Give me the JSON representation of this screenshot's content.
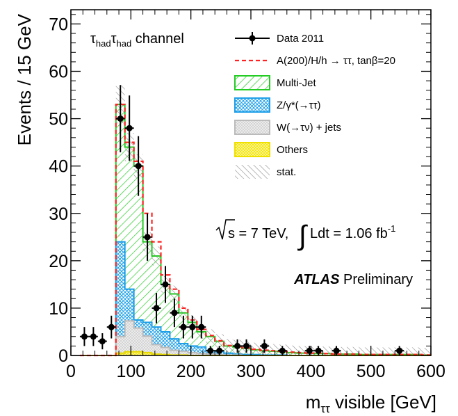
{
  "chart_data": {
    "type": "bar",
    "channel_label": {
      "prefix_a": "τ",
      "sub_a": "had",
      "prefix_b": "τ",
      "sub_b": "had",
      "rest": " channel"
    },
    "xlabel": {
      "main": "m",
      "sub": "ττ",
      "rest": " visible [GeV]"
    },
    "ylabel": "Events / 15 GeV",
    "xlim": [
      0,
      600
    ],
    "ylim": [
      0,
      73
    ],
    "x_ticks": [
      "0",
      "100",
      "200",
      "300",
      "400",
      "500",
      "600"
    ],
    "y_ticks": [
      "0",
      "10",
      "20",
      "30",
      "40",
      "50",
      "60",
      "70"
    ],
    "bins": [
      15,
      30,
      45,
      60,
      75,
      90,
      105,
      120,
      135,
      150,
      165,
      180,
      195,
      210,
      225,
      240,
      255,
      270,
      285,
      300,
      315,
      330,
      345,
      360,
      375,
      390,
      405,
      420,
      435,
      450,
      465,
      480,
      495,
      510,
      525,
      540,
      555,
      570,
      585,
      600
    ],
    "stack": {
      "others": [
        0,
        0,
        0,
        0,
        0.5,
        0.8,
        0.8,
        0.6,
        0.3,
        0.2,
        0.1,
        0.1,
        0,
        0,
        0,
        0,
        0,
        0,
        0,
        0,
        0,
        0,
        0,
        0,
        0,
        0,
        0,
        0,
        0,
        0,
        0,
        0,
        0,
        0,
        0,
        0,
        0,
        0,
        0
      ],
      "wjets": [
        0,
        0,
        0,
        0,
        3.5,
        6.5,
        5.0,
        3.5,
        2.0,
        1.5,
        1.0,
        0.8,
        0.6,
        0.4,
        0.3,
        0.2,
        0.1,
        0.1,
        0,
        0,
        0,
        0,
        0,
        0,
        0,
        0,
        0,
        0,
        0,
        0,
        0,
        0,
        0,
        0,
        0,
        0,
        0,
        0,
        0
      ],
      "ztautau": [
        0,
        0,
        0,
        0,
        24,
        14,
        7.5,
        7,
        6,
        5,
        3.5,
        2.5,
        2,
        1.8,
        1,
        0.8,
        0.5,
        0.3,
        0.2,
        0.2,
        0.1,
        0.1,
        0.1,
        0,
        0,
        0,
        0,
        0,
        0,
        0,
        0,
        0,
        0,
        0,
        0,
        0,
        0,
        0,
        0
      ],
      "multijet_total": [
        0,
        0,
        0,
        0,
        53,
        44,
        40,
        24,
        21,
        15,
        13,
        9,
        7,
        5,
        4,
        3,
        2,
        1.8,
        1.5,
        1.2,
        1.0,
        0.9,
        0.8,
        0.6,
        0.5,
        0.5,
        0.4,
        0.4,
        0.3,
        0.3,
        0.3,
        0.2,
        0.2,
        0.2,
        0.2,
        0.2,
        0.2,
        0.2,
        0.1
      ]
    },
    "signal_total": [
      0,
      0,
      0,
      0,
      53,
      45,
      41,
      30,
      24,
      17,
      14,
      10,
      7.5,
      5.5,
      4.2,
      3.1,
      2.1,
      1.9,
      1.6,
      1.3,
      1.1,
      1.0,
      0.9,
      0.7,
      0.6,
      0.5,
      0.5,
      0.4,
      0.3,
      0.3,
      0.3,
      0.2,
      0.2,
      0.2,
      0.2,
      0.2,
      0.2,
      0.2,
      0.1
    ],
    "stat_band": [
      0,
      0,
      0,
      0,
      8,
      6,
      5,
      4,
      4,
      3.5,
      3.5,
      3,
      3,
      3,
      3,
      3,
      3,
      3,
      3,
      3,
      3,
      3,
      3,
      3,
      3,
      3,
      3,
      3,
      3,
      3,
      3,
      3,
      3,
      3,
      3,
      3,
      3,
      3,
      3
    ],
    "data_points": [
      {
        "x": 22.5,
        "y": 4,
        "err": 2.0
      },
      {
        "x": 37.5,
        "y": 4,
        "err": 2.0
      },
      {
        "x": 52.5,
        "y": 3,
        "err": 1.7
      },
      {
        "x": 67.5,
        "y": 6,
        "err": 2.4
      },
      {
        "x": 82.5,
        "y": 50,
        "err": 7.1
      },
      {
        "x": 97.5,
        "y": 48,
        "err": 6.9
      },
      {
        "x": 112.5,
        "y": 40,
        "err": 6.3
      },
      {
        "x": 127.5,
        "y": 25,
        "err": 5.0
      },
      {
        "x": 142.5,
        "y": 10,
        "err": 3.2
      },
      {
        "x": 157.5,
        "y": 15,
        "err": 3.9
      },
      {
        "x": 172.5,
        "y": 9,
        "err": 3.0
      },
      {
        "x": 187.5,
        "y": 6,
        "err": 2.4
      },
      {
        "x": 202.5,
        "y": 6,
        "err": 2.4
      },
      {
        "x": 217.5,
        "y": 6,
        "err": 2.4
      },
      {
        "x": 232.5,
        "y": 1,
        "err": 1.0
      },
      {
        "x": 247.5,
        "y": 1,
        "err": 1.0
      },
      {
        "x": 277.5,
        "y": 2,
        "err": 1.4
      },
      {
        "x": 292.5,
        "y": 2,
        "err": 1.4
      },
      {
        "x": 322.5,
        "y": 2,
        "err": 1.4
      },
      {
        "x": 352.5,
        "y": 1,
        "err": 1.0
      },
      {
        "x": 397.5,
        "y": 1,
        "err": 1.0
      },
      {
        "x": 412.5,
        "y": 1,
        "err": 1.0
      },
      {
        "x": 442.5,
        "y": 1,
        "err": 1.0
      },
      {
        "x": 547.5,
        "y": 1,
        "err": 1.0
      }
    ],
    "legend": [
      {
        "label": "Data 2011",
        "kind": "data"
      },
      {
        "label": "A(200)/H/h → ττ, tanβ=20",
        "kind": "dashed",
        "color": "#ff2222"
      },
      {
        "label": "Multi-Jet",
        "kind": "hatch-green",
        "color": "#22cc22"
      },
      {
        "label": "Z/γ*(→ττ)",
        "kind": "hatch-blue",
        "color": "#1e9fe8"
      },
      {
        "label": "W(→τν) + jets",
        "kind": "hatch-grey",
        "color": "#bbbbbb"
      },
      {
        "label": "Others",
        "kind": "hatch-yellow",
        "color": "#f0e000"
      },
      {
        "label": "stat.",
        "kind": "hatch-stat",
        "color": "#777777"
      }
    ],
    "lumi_text": {
      "sqrt": "s = 7 TeV, ",
      "ldt": "Ldt = 1.06 fb",
      "sup": "-1"
    },
    "atlas": {
      "bold": "ATLAS",
      "rest": " Preliminary"
    },
    "colors": {
      "multijet": "#22cc22",
      "ztautau": "#1e9fe8",
      "wjets": "#aaaaaa",
      "others": "#e6d800",
      "signal": "#ff2222"
    }
  }
}
